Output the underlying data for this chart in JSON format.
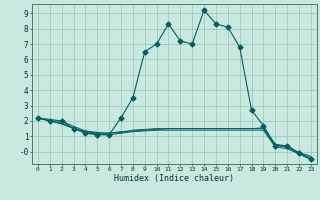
{
  "xlabel": "Humidex (Indice chaleur)",
  "bg_color": "#c8e8e0",
  "grid_color": "#a0c8bc",
  "line_color": "#006060",
  "xlim": [
    -0.5,
    23.5
  ],
  "ylim": [
    -0.8,
    9.6
  ],
  "xticks": [
    0,
    1,
    2,
    3,
    4,
    5,
    6,
    7,
    8,
    9,
    10,
    11,
    12,
    13,
    14,
    15,
    16,
    17,
    18,
    19,
    20,
    21,
    22,
    23
  ],
  "yticks": [
    0,
    1,
    2,
    3,
    4,
    5,
    6,
    7,
    8,
    9
  ],
  "ytick_labels": [
    "-0",
    "1",
    "2",
    "3",
    "4",
    "5",
    "6",
    "7",
    "8",
    "9"
  ],
  "series_main": {
    "x": [
      0,
      1,
      2,
      3,
      4,
      5,
      6,
      7,
      8,
      9,
      10,
      11,
      12,
      13,
      14,
      15,
      16,
      17,
      18,
      19,
      20,
      21,
      22,
      23
    ],
    "y": [
      2.2,
      2.0,
      2.0,
      1.5,
      1.2,
      1.1,
      1.1,
      2.2,
      3.5,
      6.5,
      7.0,
      8.3,
      7.2,
      7.0,
      9.2,
      8.3,
      8.1,
      6.8,
      2.7,
      1.7,
      0.4,
      0.4,
      -0.1,
      -0.5
    ],
    "marker": "D",
    "markersize": 2.5
  },
  "series_flat": [
    {
      "x": [
        0,
        1,
        2,
        3,
        4,
        5,
        6,
        7,
        8,
        9,
        10,
        11,
        12,
        13,
        14,
        15,
        16,
        17,
        18,
        19,
        20,
        21,
        22,
        23
      ],
      "y": [
        2.2,
        2.0,
        1.8,
        1.5,
        1.3,
        1.2,
        1.2,
        1.3,
        1.35,
        1.4,
        1.45,
        1.5,
        1.5,
        1.5,
        1.5,
        1.5,
        1.5,
        1.5,
        1.5,
        1.5,
        0.4,
        0.3,
        -0.1,
        -0.4
      ]
    },
    {
      "x": [
        0,
        1,
        2,
        3,
        4,
        5,
        6,
        7,
        8,
        9,
        10,
        11,
        12,
        13,
        14,
        15,
        16,
        17,
        18,
        19,
        20,
        21,
        22,
        23
      ],
      "y": [
        2.2,
        2.0,
        1.85,
        1.55,
        1.25,
        1.15,
        1.1,
        1.2,
        1.3,
        1.35,
        1.4,
        1.4,
        1.4,
        1.4,
        1.4,
        1.4,
        1.4,
        1.4,
        1.4,
        1.4,
        0.3,
        0.2,
        -0.15,
        -0.5
      ]
    },
    {
      "x": [
        0,
        1,
        2,
        3,
        4,
        5,
        6,
        7,
        8,
        9,
        10,
        11,
        12,
        13,
        14,
        15,
        16,
        17,
        18,
        19,
        20,
        21,
        22,
        23
      ],
      "y": [
        2.2,
        2.1,
        2.0,
        1.65,
        1.35,
        1.25,
        1.2,
        1.25,
        1.4,
        1.45,
        1.5,
        1.5,
        1.5,
        1.5,
        1.5,
        1.5,
        1.5,
        1.5,
        1.5,
        1.55,
        0.5,
        0.35,
        -0.05,
        -0.3
      ]
    }
  ]
}
